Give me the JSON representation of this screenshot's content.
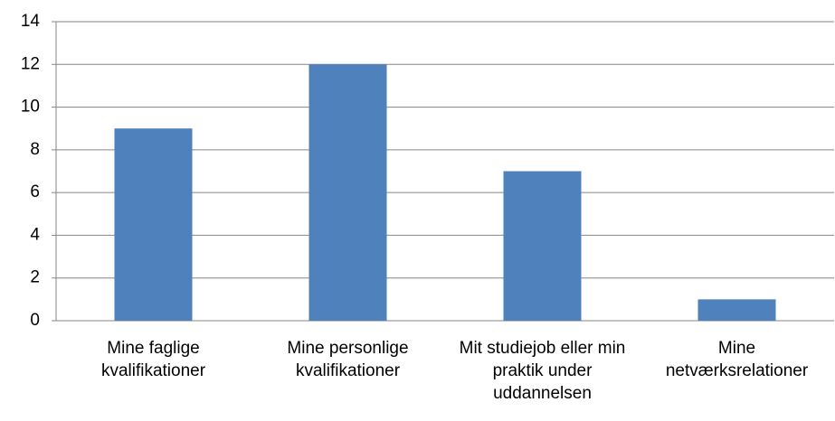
{
  "chart_data": {
    "type": "bar",
    "categories": [
      "Mine faglige kvalifikationer",
      "Mine personlige kvalifikationer",
      "Mit studiejob eller min praktik under uddannelsen",
      "Mine netværksrelationer"
    ],
    "values": [
      9,
      12,
      7,
      1
    ],
    "color": "#4f81bd",
    "ylim": [
      0,
      14
    ],
    "yticks": [
      0,
      2,
      4,
      6,
      8,
      10,
      12,
      14
    ],
    "grid": true
  }
}
